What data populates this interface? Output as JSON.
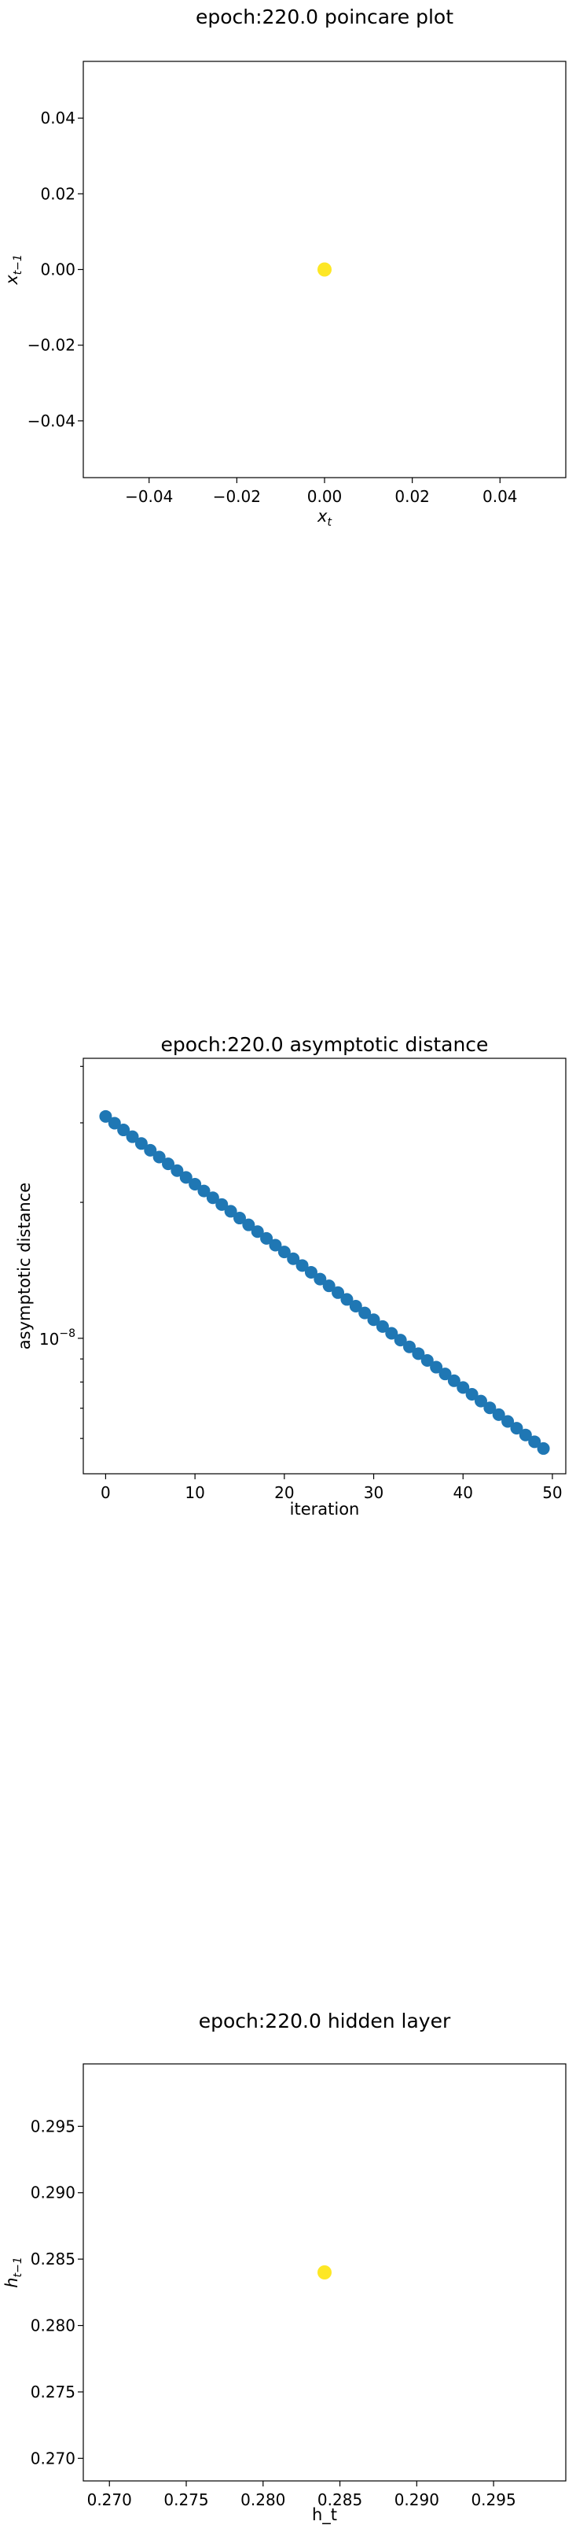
{
  "chart_data": [
    {
      "type": "scatter",
      "title": "epoch:220.0 poincare plot",
      "xlabel": "x_t",
      "ylabel": "x_{t-1}",
      "xlim": [
        -0.055,
        0.055
      ],
      "ylim": [
        -0.055,
        0.055
      ],
      "xticks": [
        "−0.04",
        "−0.02",
        "0.00",
        "0.02",
        "0.04"
      ],
      "xtick_values": [
        -0.04,
        -0.02,
        0.0,
        0.02,
        0.04
      ],
      "yticks": [
        "−0.04",
        "−0.02",
        "0.00",
        "0.02",
        "0.04"
      ],
      "ytick_values": [
        -0.04,
        -0.02,
        0.0,
        0.02,
        0.04
      ],
      "points": [
        {
          "x": 0.0,
          "y": 0.0
        }
      ],
      "point_color": "#fde725"
    },
    {
      "type": "scatter",
      "title": "epoch:220.0 asymptotic distance",
      "xlabel": "iteration",
      "ylabel": "asymptotic distance",
      "y_scale": "log",
      "xlim": [
        -2.5,
        51.5
      ],
      "ylim_log10": [
        -8.3,
        -7.38
      ],
      "xticks": [
        "0",
        "10",
        "20",
        "30",
        "40",
        "50"
      ],
      "xtick_values": [
        0,
        10,
        20,
        30,
        40,
        50
      ],
      "ytick_label": "10",
      "ytick_exponent": "−8",
      "ytick_log10": -8,
      "y_first": 3.1e-08,
      "y_last": 5.7e-09,
      "n_points": 50,
      "point_color": "#1f77b4"
    },
    {
      "type": "scatter",
      "title": "epoch:220.0 hidden layer",
      "xlabel": "h_t",
      "ylabel": "h_{t-1}",
      "xlim": [
        0.2683,
        0.2997
      ],
      "ylim": [
        0.2683,
        0.2997
      ],
      "xticks": [
        "0.270",
        "0.275",
        "0.280",
        "0.285",
        "0.290",
        "0.295"
      ],
      "xtick_values": [
        0.27,
        0.275,
        0.28,
        0.285,
        0.29,
        0.295
      ],
      "yticks": [
        "0.270",
        "0.275",
        "0.280",
        "0.285",
        "0.290",
        "0.295"
      ],
      "ytick_values": [
        0.27,
        0.275,
        0.28,
        0.285,
        0.29,
        0.295
      ],
      "points": [
        {
          "x": 0.284,
          "y": 0.284
        }
      ],
      "point_color": "#fde725"
    }
  ]
}
